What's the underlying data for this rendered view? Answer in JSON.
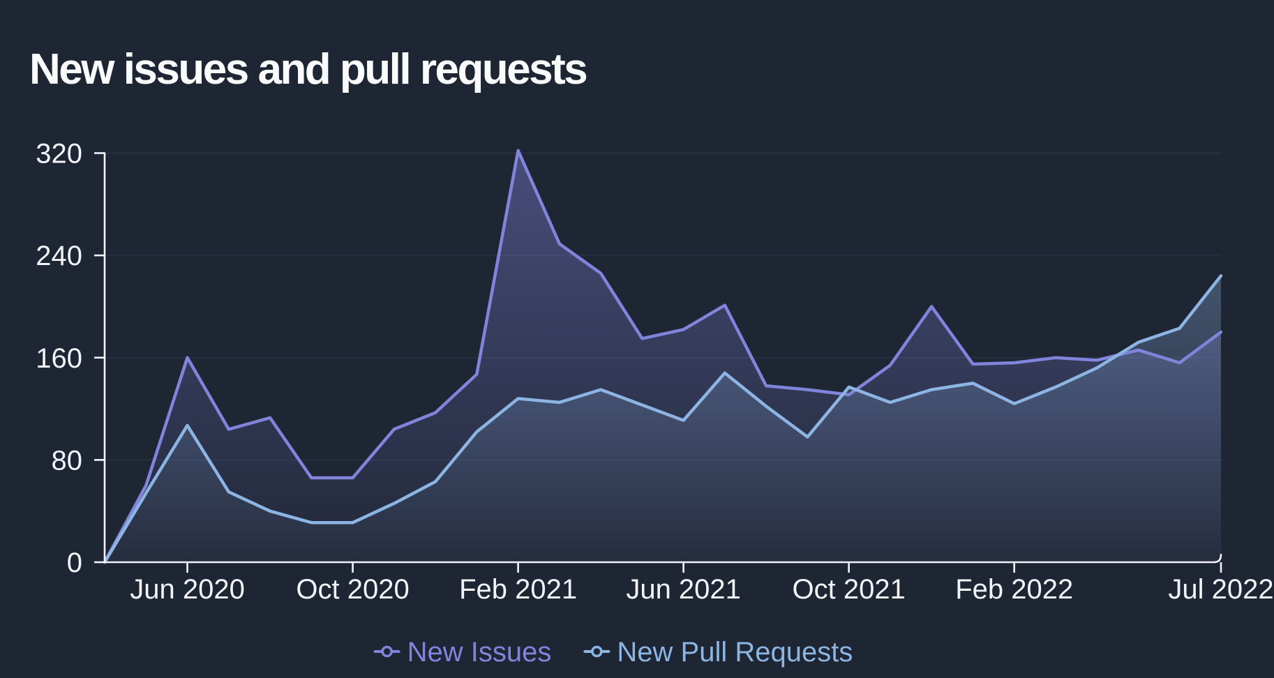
{
  "title": "New issues and pull requests",
  "colors": {
    "background": "#1e2533",
    "axis": "#f2f4f8",
    "grid": "#2a3145",
    "tick_text": "#f2f4f8",
    "new_issues": "#8184db",
    "new_pull_requests": "#8db5e3"
  },
  "legend": {
    "items": [
      {
        "label": "New Issues",
        "color_key": "new_issues"
      },
      {
        "label": "New Pull Requests",
        "color_key": "new_pull_requests"
      }
    ]
  },
  "chart_data": {
    "type": "line",
    "title": "New issues and pull requests",
    "area_fill": true,
    "grid": "horizontal",
    "legend_position": "bottom",
    "ylim": [
      0,
      320
    ],
    "y_ticks": [
      0,
      80,
      160,
      240,
      320
    ],
    "categories": [
      "Apr 2020",
      "May 2020",
      "Jun 2020",
      "Jul 2020",
      "Aug 2020",
      "Sep 2020",
      "Oct 2020",
      "Nov 2020",
      "Dec 2020",
      "Jan 2021",
      "Feb 2021",
      "Mar 2021",
      "Apr 2021",
      "May 2021",
      "Jun 2021",
      "Jul 2021",
      "Aug 2021",
      "Sep 2021",
      "Oct 2021",
      "Nov 2021",
      "Dec 2021",
      "Jan 2022",
      "Feb 2022",
      "Mar 2022",
      "Apr 2022",
      "May 2022",
      "Jun 2022",
      "Jul 2022"
    ],
    "x_tick_labels": [
      {
        "label": "Jun 2020",
        "index": 2
      },
      {
        "label": "Oct 2020",
        "index": 6
      },
      {
        "label": "Feb 2021",
        "index": 10
      },
      {
        "label": "Jun 2021",
        "index": 14
      },
      {
        "label": "Oct 2021",
        "index": 18
      },
      {
        "label": "Feb 2022",
        "index": 22
      },
      {
        "label": "Jul 2022",
        "index": 27
      }
    ],
    "series": [
      {
        "name": "New Issues",
        "color_key": "new_issues",
        "values": [
          0,
          60,
          160,
          104,
          113,
          66,
          66,
          104,
          117,
          147,
          322,
          249,
          226,
          175,
          182,
          201,
          138,
          135,
          131,
          154,
          200,
          155,
          156,
          160,
          158,
          166,
          156,
          180
        ]
      },
      {
        "name": "New Pull Requests",
        "color_key": "new_pull_requests",
        "values": [
          0,
          54,
          107,
          55,
          40,
          31,
          31,
          46,
          63,
          102,
          128,
          125,
          135,
          123,
          111,
          148,
          122,
          98,
          137,
          125,
          135,
          140,
          124,
          137,
          152,
          172,
          183,
          224
        ]
      }
    ]
  }
}
